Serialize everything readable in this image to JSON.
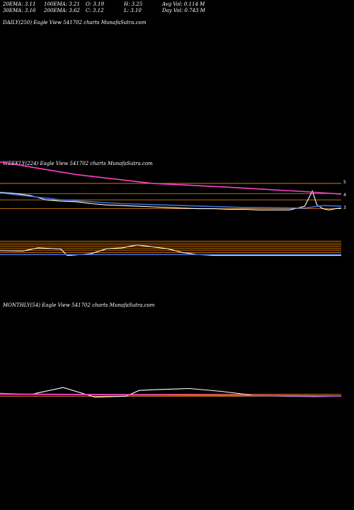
{
  "header": {
    "row1": [
      "20EMA: 3.11",
      "100EMA: 3.21",
      "O: 3.19",
      "H: 3.25",
      "Avg Vol: 0.114  M"
    ],
    "row2": [
      "30EMA: 3.16",
      "200EMA: 3.62",
      "C: 3.12",
      "L: 3.10",
      "Day Vol: 0.743 M"
    ]
  },
  "panels": {
    "daily_title": "DAILY(250) Eagle  View  541702  charts MunafaSutra.com",
    "weekly_title": "WEEKLY(224) Eagle  View  541702  charts MunafaSutra.com",
    "monthly_title": "MONTHLY(54) Eagle  View  541702  charts MunafaSutra.com"
  },
  "colors": {
    "background": "#000000",
    "price": "#ffffff",
    "ema_short": "#3d6fd9",
    "ema_long": "#ff3ec8",
    "level": "#ff8c00",
    "text": "#ffffff"
  },
  "chart_data": [
    {
      "type": "line",
      "panel": "weekly",
      "title": "WEEKLY(224) Eagle  View  541702  charts MunafaSutra.com",
      "ytick_labels": [
        "5",
        "4",
        "3"
      ],
      "ylim": [
        2.6,
        5.4
      ],
      "xlim": [
        0,
        224
      ],
      "levels": [
        4.9,
        4.1,
        3.6,
        2.9
      ],
      "series": [
        {
          "role": "price",
          "color": "#ffffff",
          "x": [
            0,
            10,
            20,
            30,
            40,
            50,
            60,
            70,
            80,
            90,
            100,
            110,
            120,
            130,
            140,
            150,
            160,
            170,
            180,
            190,
            200,
            205,
            208,
            212,
            216,
            220,
            224
          ],
          "y": [
            4.2,
            4.1,
            3.95,
            3.6,
            3.5,
            3.45,
            3.3,
            3.2,
            3.15,
            3.1,
            3.05,
            3.0,
            2.95,
            2.9,
            2.9,
            2.85,
            2.85,
            2.8,
            2.8,
            2.8,
            3.1,
            4.3,
            3.2,
            2.9,
            2.8,
            2.9,
            2.95
          ]
        },
        {
          "role": "ema",
          "color": "#3d6fd9",
          "x": [
            0,
            40,
            80,
            120,
            160,
            200,
            212,
            224
          ],
          "y": [
            4.15,
            3.6,
            3.3,
            3.15,
            3.0,
            2.95,
            3.15,
            3.1
          ]
        },
        {
          "role": "ema",
          "color": "#ff3ec8",
          "x": [
            0,
            50,
            100,
            150,
            200,
            224
          ],
          "y": [
            6.6,
            5.6,
            4.9,
            4.6,
            4.25,
            4.05
          ]
        }
      ]
    },
    {
      "type": "line",
      "panel": "weekly-indicator",
      "ylim": [
        0,
        100
      ],
      "xlim": [
        0,
        224
      ],
      "levels": [
        80,
        70,
        60,
        50,
        40,
        30,
        20
      ],
      "series": [
        {
          "role": "indicator",
          "color": "#ffffff",
          "x": [
            0,
            15,
            25,
            40,
            44,
            46,
            50,
            60,
            70,
            80,
            90,
            100,
            110,
            120,
            130,
            140,
            150,
            160,
            170,
            180,
            190,
            200,
            210,
            220,
            224
          ],
          "y": [
            30,
            28,
            45,
            38,
            5,
            5,
            8,
            15,
            40,
            45,
            60,
            50,
            40,
            20,
            10,
            5,
            5,
            5,
            5,
            5,
            5,
            5,
            5,
            5,
            5
          ]
        },
        {
          "role": "indicator-signal",
          "color": "#3d6fd9",
          "x": [
            0,
            224
          ],
          "y": [
            10,
            10
          ]
        }
      ]
    },
    {
      "type": "line",
      "panel": "monthly",
      "title": "MONTHLY(54) Eagle  View  541702  charts MunafaSutra.com",
      "ylim": [
        0,
        100
      ],
      "xlim": [
        0,
        54
      ],
      "levels": [
        20,
        10
      ],
      "series": [
        {
          "role": "price",
          "color": "#ffffff",
          "x": [
            0,
            5,
            10,
            15,
            20,
            22,
            25,
            30,
            35,
            40,
            45,
            50,
            54
          ],
          "y": [
            25,
            20,
            55,
            5,
            10,
            40,
            45,
            50,
            35,
            15,
            10,
            8,
            10
          ]
        },
        {
          "role": "ema",
          "color": "#3d6fd9",
          "x": [
            0,
            54
          ],
          "y": [
            22,
            10
          ]
        },
        {
          "role": "ema",
          "color": "#ff3ec8",
          "x": [
            0,
            54
          ],
          "y": [
            20,
            12
          ]
        }
      ]
    }
  ]
}
